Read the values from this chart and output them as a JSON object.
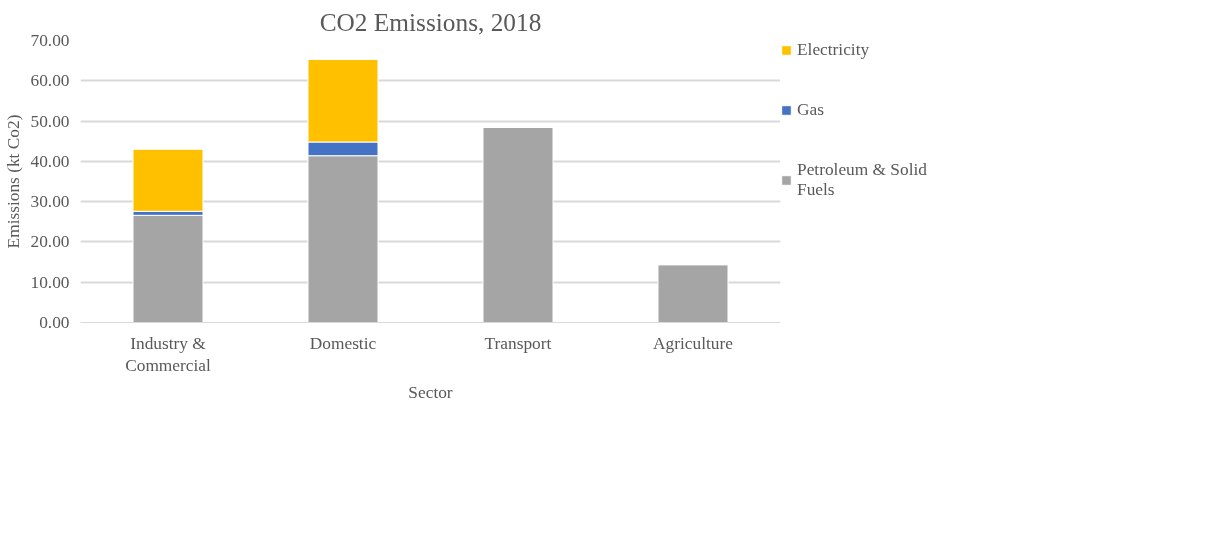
{
  "chart_data": {
    "type": "bar",
    "title": "CO2 Emissions, 2018",
    "xlabel": "Sector",
    "ylabel": "Emissions (kt Co2)",
    "categories": [
      "Industry & Commercial",
      "Domestic",
      "Transport",
      "Agriculture"
    ],
    "stacked": true,
    "series": [
      {
        "name": "Petroleum & Solid Fuels",
        "color": "#a5a5a5",
        "values": [
          26.6,
          41.4,
          48.4,
          14.3
        ]
      },
      {
        "name": "Gas",
        "color": "#4472c4",
        "values": [
          1.0,
          3.4,
          null,
          null
        ]
      },
      {
        "name": "Electricity",
        "color": "#ffc000",
        "values": [
          15.4,
          20.5,
          null,
          null
        ]
      }
    ],
    "ylim": [
      0,
      70
    ],
    "yticks": [
      {
        "value": 0,
        "label": "0.00"
      },
      {
        "value": 10,
        "label": "10.00"
      },
      {
        "value": 20,
        "label": "20.00"
      },
      {
        "value": 30,
        "label": "30.00"
      },
      {
        "value": 40,
        "label": "40.00"
      },
      {
        "value": 50,
        "label": "50.00"
      },
      {
        "value": 60,
        "label": "60.00"
      },
      {
        "value": 70,
        "label": "70.00"
      }
    ],
    "grid": "y",
    "legend": "right"
  }
}
